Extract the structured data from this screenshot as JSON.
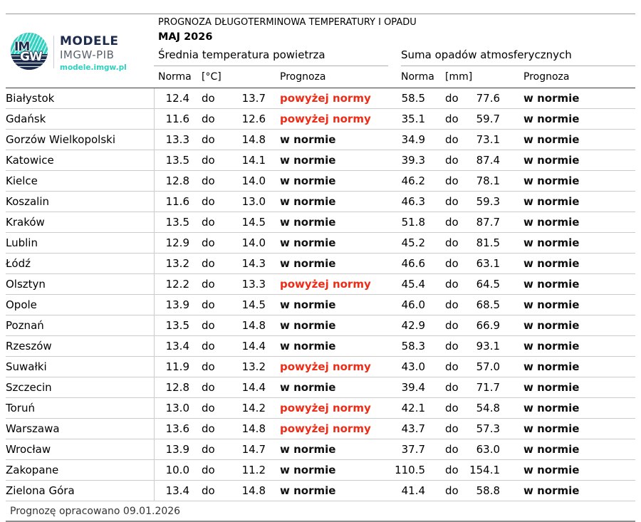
{
  "brand": {
    "mark_top": "IM",
    "mark_bottom": "GW",
    "name": "MODELE",
    "org": "IMGW-PIB",
    "url": "modele.imgw.pl"
  },
  "header": {
    "title": "PROGNOZA DŁUGOTERMINOWA TEMPERATURY I OPADU",
    "subtitle": "MAJ 2026"
  },
  "table": {
    "range_word": "do",
    "groups": [
      {
        "label": "Średnia temperatura powietrza",
        "norma": "Norma",
        "unit": "[°C]",
        "prognoza": "Prognoza"
      },
      {
        "label": "Suma opadów atmosferycznych",
        "norma": "Norma",
        "unit": "[mm]",
        "prognoza": "Prognoza"
      }
    ],
    "rows": [
      {
        "city": "Białystok",
        "t_min": "12.4",
        "t_max": "13.7",
        "t_prognoza": "powyżej normy",
        "t_status": "above",
        "p_min": "58.5",
        "p_max": "77.6",
        "p_prognoza": "w normie",
        "p_status": "normal"
      },
      {
        "city": "Gdańsk",
        "t_min": "11.6",
        "t_max": "12.6",
        "t_prognoza": "powyżej normy",
        "t_status": "above",
        "p_min": "35.1",
        "p_max": "59.7",
        "p_prognoza": "w normie",
        "p_status": "normal"
      },
      {
        "city": "Gorzów Wielkopolski",
        "t_min": "13.3",
        "t_max": "14.8",
        "t_prognoza": "w normie",
        "t_status": "normal",
        "p_min": "34.9",
        "p_max": "73.1",
        "p_prognoza": "w normie",
        "p_status": "normal"
      },
      {
        "city": "Katowice",
        "t_min": "13.5",
        "t_max": "14.1",
        "t_prognoza": "w normie",
        "t_status": "normal",
        "p_min": "39.3",
        "p_max": "87.4",
        "p_prognoza": "w normie",
        "p_status": "normal"
      },
      {
        "city": "Kielce",
        "t_min": "12.8",
        "t_max": "14.0",
        "t_prognoza": "w normie",
        "t_status": "normal",
        "p_min": "46.2",
        "p_max": "78.1",
        "p_prognoza": "w normie",
        "p_status": "normal"
      },
      {
        "city": "Koszalin",
        "t_min": "11.6",
        "t_max": "13.0",
        "t_prognoza": "w normie",
        "t_status": "normal",
        "p_min": "46.3",
        "p_max": "59.3",
        "p_prognoza": "w normie",
        "p_status": "normal"
      },
      {
        "city": "Kraków",
        "t_min": "13.5",
        "t_max": "14.5",
        "t_prognoza": "w normie",
        "t_status": "normal",
        "p_min": "51.8",
        "p_max": "87.7",
        "p_prognoza": "w normie",
        "p_status": "normal"
      },
      {
        "city": "Lublin",
        "t_min": "12.9",
        "t_max": "14.0",
        "t_prognoza": "w normie",
        "t_status": "normal",
        "p_min": "45.2",
        "p_max": "81.5",
        "p_prognoza": "w normie",
        "p_status": "normal"
      },
      {
        "city": "Łódź",
        "t_min": "13.2",
        "t_max": "14.3",
        "t_prognoza": "w normie",
        "t_status": "normal",
        "p_min": "46.6",
        "p_max": "63.1",
        "p_prognoza": "w normie",
        "p_status": "normal"
      },
      {
        "city": "Olsztyn",
        "t_min": "12.2",
        "t_max": "13.3",
        "t_prognoza": "powyżej normy",
        "t_status": "above",
        "p_min": "45.4",
        "p_max": "64.5",
        "p_prognoza": "w normie",
        "p_status": "normal"
      },
      {
        "city": "Opole",
        "t_min": "13.9",
        "t_max": "14.5",
        "t_prognoza": "w normie",
        "t_status": "normal",
        "p_min": "46.0",
        "p_max": "68.5",
        "p_prognoza": "w normie",
        "p_status": "normal"
      },
      {
        "city": "Poznań",
        "t_min": "13.5",
        "t_max": "14.8",
        "t_prognoza": "w normie",
        "t_status": "normal",
        "p_min": "42.9",
        "p_max": "66.9",
        "p_prognoza": "w normie",
        "p_status": "normal"
      },
      {
        "city": "Rzeszów",
        "t_min": "13.4",
        "t_max": "14.4",
        "t_prognoza": "w normie",
        "t_status": "normal",
        "p_min": "58.3",
        "p_max": "93.1",
        "p_prognoza": "w normie",
        "p_status": "normal"
      },
      {
        "city": "Suwałki",
        "t_min": "11.9",
        "t_max": "13.2",
        "t_prognoza": "powyżej normy",
        "t_status": "above",
        "p_min": "43.0",
        "p_max": "57.0",
        "p_prognoza": "w normie",
        "p_status": "normal"
      },
      {
        "city": "Szczecin",
        "t_min": "12.8",
        "t_max": "14.4",
        "t_prognoza": "w normie",
        "t_status": "normal",
        "p_min": "39.4",
        "p_max": "71.7",
        "p_prognoza": "w normie",
        "p_status": "normal"
      },
      {
        "city": "Toruń",
        "t_min": "13.0",
        "t_max": "14.2",
        "t_prognoza": "powyżej normy",
        "t_status": "above",
        "p_min": "42.1",
        "p_max": "54.8",
        "p_prognoza": "w normie",
        "p_status": "normal"
      },
      {
        "city": "Warszawa",
        "t_min": "13.6",
        "t_max": "14.8",
        "t_prognoza": "powyżej normy",
        "t_status": "above",
        "p_min": "43.7",
        "p_max": "57.3",
        "p_prognoza": "w normie",
        "p_status": "normal"
      },
      {
        "city": "Wrocław",
        "t_min": "13.9",
        "t_max": "14.7",
        "t_prognoza": "w normie",
        "t_status": "normal",
        "p_min": "37.7",
        "p_max": "63.0",
        "p_prognoza": "w normie",
        "p_status": "normal"
      },
      {
        "city": "Zakopane",
        "t_min": "10.0",
        "t_max": "11.2",
        "t_prognoza": "w normie",
        "t_status": "normal",
        "p_min": "110.5",
        "p_max": "154.1",
        "p_prognoza": "w normie",
        "p_status": "normal"
      },
      {
        "city": "Zielona Góra",
        "t_min": "13.4",
        "t_max": "14.8",
        "t_prognoza": "w normie",
        "t_status": "normal",
        "p_min": "41.4",
        "p_max": "58.8",
        "p_prognoza": "w normie",
        "p_status": "normal"
      }
    ]
  },
  "footer": {
    "text": "Prognozę opracowano 09.01.2026"
  },
  "colors": {
    "above_norm": "#ee2b16",
    "normal_text": "#111111",
    "brand_navy": "#1d2b4d",
    "brand_teal": "#2fd0c0",
    "brand_gray": "#59616e"
  }
}
